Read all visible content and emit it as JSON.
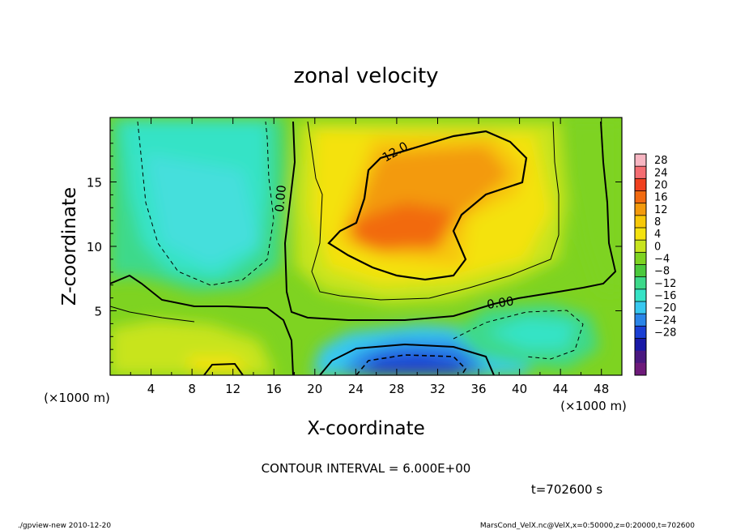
{
  "chart_data": {
    "type": "heatmap",
    "title": "zonal velocity",
    "xlabel": "X-coordinate",
    "ylabel": "Z-coordinate",
    "x_unit_label": "(×1000 m)",
    "y_unit_label": "(×1000 m)",
    "xlim": [
      0,
      50
    ],
    "ylim": [
      0,
      20
    ],
    "x_ticks": [
      "4",
      "8",
      "12",
      "16",
      "20",
      "24",
      "28",
      "32",
      "36",
      "40",
      "44",
      "48"
    ],
    "x_tick_values": [
      4,
      8,
      12,
      16,
      20,
      24,
      28,
      32,
      36,
      40,
      44,
      48
    ],
    "y_ticks": [
      "5",
      "10",
      "15"
    ],
    "y_tick_values": [
      5,
      10,
      15
    ],
    "colorbar": {
      "labels": [
        "28",
        "24",
        "20",
        "16",
        "12",
        "8",
        "4",
        "0",
        "−4",
        "−8",
        "−12",
        "−16",
        "−20",
        "−24",
        "−28"
      ],
      "colors": [
        "#f7b6c2",
        "#f46d72",
        "#f0401f",
        "#f26a10",
        "#f39a0c",
        "#f7c808",
        "#f4e20f",
        "#c8e41e",
        "#7ed321",
        "#4bc93c",
        "#3cd98a",
        "#36e3c6",
        "#37c8f0",
        "#2a85e8",
        "#1a3fd4",
        "#1919a6",
        "#4a1880",
        "#6e1a7a"
      ],
      "range": [
        -32,
        32
      ],
      "step": 4
    },
    "contour_labels": [
      {
        "text": "12.0",
        "value": 12,
        "x": 29.2,
        "z": 17.0
      },
      {
        "text": "0.00",
        "value": 0,
        "x": 17.4,
        "z": 13.9
      },
      {
        "text": "0.00",
        "value": 0,
        "x": 38.3,
        "z": 5.7
      }
    ],
    "contour_interval_text": "CONTOUR INTERVAL = 6.000E+00",
    "time_text": "t=702600 s",
    "footer_left": "./gpview-new  2010-12-20",
    "footer_right": "MarsCond_VelX.nc@VelX,x=0:50000,z=0:20000,t=702600",
    "field_summary": [
      {
        "region": "upper center max",
        "x": 25,
        "z": 10.5,
        "value": 17
      },
      {
        "region": "lower center min",
        "x": 29,
        "z": 1.2,
        "value": -22
      },
      {
        "region": "upper left min",
        "x": 11,
        "z": 11,
        "value": -10
      },
      {
        "region": "lower right min",
        "x": 40,
        "z": 3,
        "value": -10
      },
      {
        "region": "lower left max",
        "x": 11,
        "z": 1,
        "value": 12
      }
    ]
  }
}
